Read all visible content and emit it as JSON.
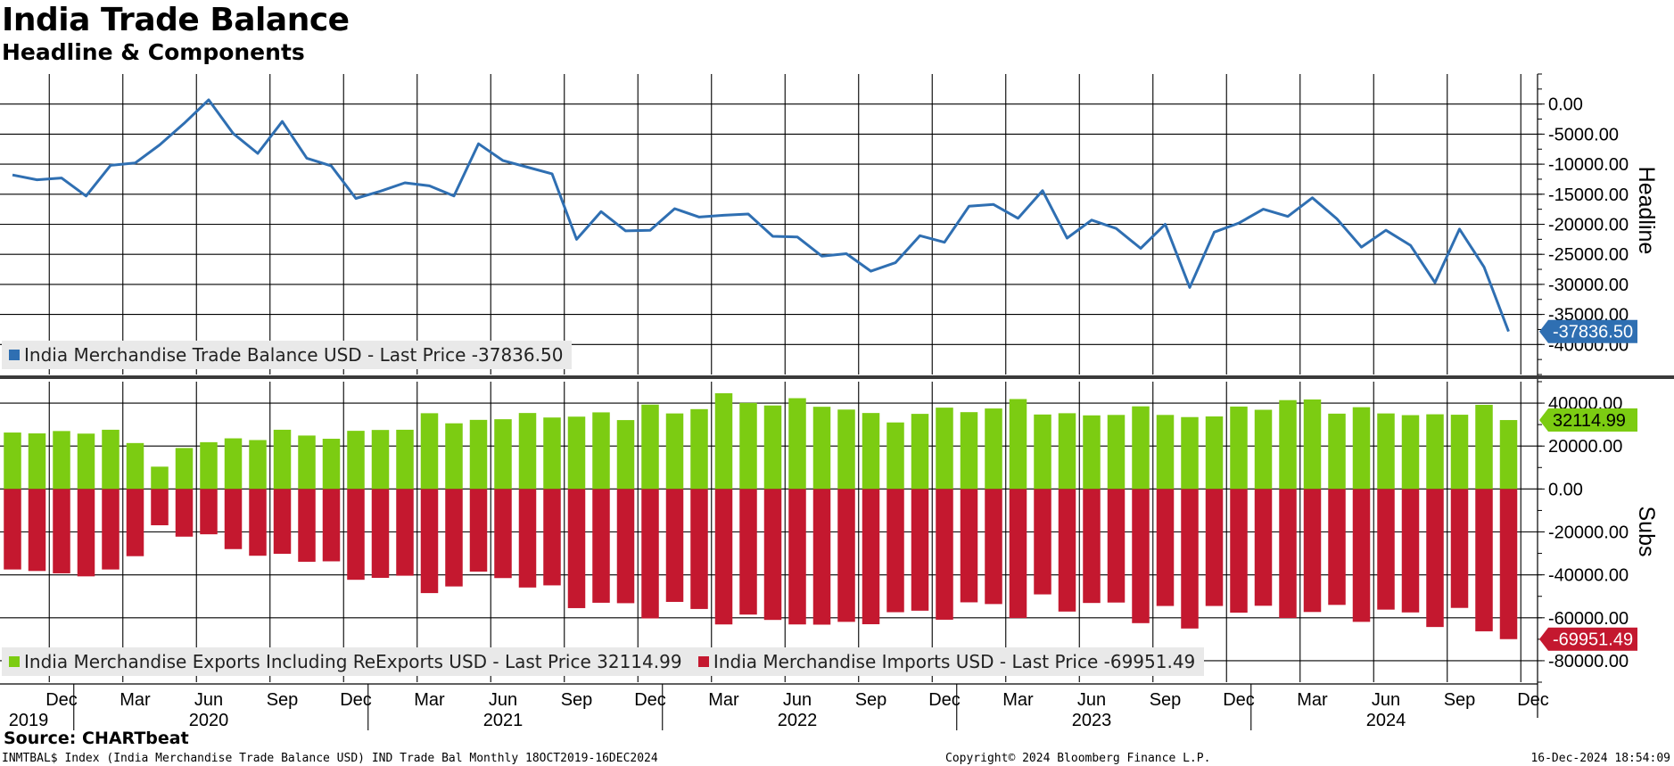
{
  "header": {
    "title": "India Trade Balance",
    "subtitle": "Headline & Components"
  },
  "footer": {
    "source": "Source: CHARTbeat",
    "ticker_info": "INMTBAL$ Index (India Merchandise Trade Balance USD) IND Trade Bal  Monthly 18OCT2019-16DEC2024",
    "copyright": "Copyright© 2024 Bloomberg Finance L.P.",
    "timestamp": "16-Dec-2024 18:54:09"
  },
  "chart_data": [
    {
      "type": "line",
      "panel": "Headline",
      "ylabel": "Headline",
      "ylim": [
        -45000,
        5000
      ],
      "yticks": [
        0,
        -5000,
        -10000,
        -15000,
        -20000,
        -25000,
        -30000,
        -35000,
        -40000
      ],
      "ytick_labels": [
        "0.00",
        "-5000.00",
        "-10000.00",
        "-15000.00",
        "-20000.00",
        "-25000.00",
        "-30000.00",
        "-35000.00",
        "-40000.00"
      ],
      "grid": true,
      "legend_position": "bottom-left",
      "x": [
        "2019-10",
        "2019-11",
        "2019-12",
        "2020-01",
        "2020-02",
        "2020-03",
        "2020-04",
        "2020-05",
        "2020-06",
        "2020-07",
        "2020-08",
        "2020-09",
        "2020-10",
        "2020-11",
        "2020-12",
        "2021-01",
        "2021-02",
        "2021-03",
        "2021-04",
        "2021-05",
        "2021-06",
        "2021-07",
        "2021-08",
        "2021-09",
        "2021-10",
        "2021-11",
        "2021-12",
        "2022-01",
        "2022-02",
        "2022-03",
        "2022-04",
        "2022-05",
        "2022-06",
        "2022-07",
        "2022-08",
        "2022-09",
        "2022-10",
        "2022-11",
        "2022-12",
        "2023-01",
        "2023-02",
        "2023-03",
        "2023-04",
        "2023-05",
        "2023-06",
        "2023-07",
        "2023-08",
        "2023-09",
        "2023-10",
        "2023-11",
        "2023-12",
        "2024-01",
        "2024-02",
        "2024-03",
        "2024-04",
        "2024-05",
        "2024-06",
        "2024-07",
        "2024-08",
        "2024-09",
        "2024-10",
        "2024-11"
      ],
      "series": [
        {
          "name": "India Merchandise Trade Balance USD - Last Price -37836.50",
          "color": "#2f6fb2",
          "last_value_label": "-37836.50",
          "values": [
            -11800,
            -12600,
            -12300,
            -15300,
            -10200,
            -9800,
            -6800,
            -3200,
            700,
            -4900,
            -8200,
            -2900,
            -9000,
            -10300,
            -15700,
            -14500,
            -13100,
            -13600,
            -15300,
            -6600,
            -9400,
            -10500,
            -11600,
            -22500,
            -17900,
            -21100,
            -21000,
            -17400,
            -18800,
            -18500,
            -18300,
            -22000,
            -22100,
            -25300,
            -24900,
            -27800,
            -26400,
            -21900,
            -23000,
            -17000,
            -16700,
            -19000,
            -14400,
            -22300,
            -19300,
            -20700,
            -24000,
            -20000,
            -30500,
            -21300,
            -19800,
            -17500,
            -18700,
            -15600,
            -19100,
            -23800,
            -21000,
            -23500,
            -29700,
            -20800,
            -27100,
            -37836.5
          ]
        }
      ]
    },
    {
      "type": "bar",
      "panel": "Subs",
      "ylabel": "Subs",
      "ylim": [
        -90000,
        50000
      ],
      "yticks": [
        40000,
        20000,
        0,
        -20000,
        -40000,
        -60000,
        -80000
      ],
      "ytick_labels": [
        "40000.00",
        "20000.00",
        "0.00",
        "-20000.00",
        "-40000.00",
        "-60000.00",
        "-80000.00"
      ],
      "grid": true,
      "legend_position": "bottom-left",
      "x_tick_labels": [
        "Dec",
        "Mar",
        "Jun",
        "Sep",
        "Dec",
        "Mar",
        "Jun",
        "Sep",
        "Dec",
        "Mar",
        "Jun",
        "Sep",
        "Dec",
        "Mar",
        "Jun",
        "Sep",
        "Dec",
        "Mar",
        "Jun",
        "Sep",
        "Dec"
      ],
      "year_labels": [
        "2019",
        "2020",
        "2021",
        "2022",
        "2023",
        "2024"
      ],
      "series": [
        {
          "name": "India Merchandise Exports Including ReExports USD - Last Price 32114.99",
          "color": "#7ccc12",
          "last_value_label": "32114.99",
          "values": [
            26300,
            25900,
            27000,
            25800,
            27600,
            21400,
            10400,
            19100,
            21800,
            23600,
            22800,
            27600,
            24900,
            23400,
            27100,
            27500,
            27600,
            35300,
            30600,
            32200,
            32500,
            35400,
            33300,
            33700,
            35700,
            32100,
            39300,
            35200,
            37200,
            44600,
            40100,
            38900,
            42300,
            38300,
            37000,
            35400,
            31000,
            35000,
            37900,
            35800,
            37500,
            41900,
            34700,
            35300,
            34300,
            34500,
            38500,
            34500,
            33500,
            33800,
            38400,
            36900,
            41400,
            41700,
            35100,
            38100,
            35200,
            34400,
            34800,
            34600,
            39200,
            32114.99
          ]
        },
        {
          "name": "India Merchandise Imports USD - Last Price -69951.49",
          "color": "#c4182f",
          "last_value_label": "-69951.49",
          "values": [
            -37500,
            -38200,
            -39300,
            -40700,
            -37500,
            -31300,
            -16900,
            -22200,
            -21100,
            -28000,
            -31100,
            -30200,
            -33900,
            -33700,
            -42300,
            -41400,
            -40400,
            -48500,
            -45400,
            -38500,
            -41500,
            -45900,
            -44900,
            -55500,
            -53000,
            -53200,
            -60300,
            -52600,
            -55900,
            -63100,
            -58500,
            -61000,
            -63100,
            -63200,
            -61900,
            -63000,
            -57400,
            -56700,
            -60900,
            -52800,
            -53600,
            -60100,
            -49100,
            -57100,
            -53100,
            -52900,
            -62500,
            -54500,
            -65000,
            -54500,
            -57600,
            -54400,
            -60100,
            -57300,
            -54000,
            -61900,
            -56200,
            -57500,
            -64300,
            -55400,
            -66300,
            -69951.49
          ]
        }
      ]
    }
  ]
}
